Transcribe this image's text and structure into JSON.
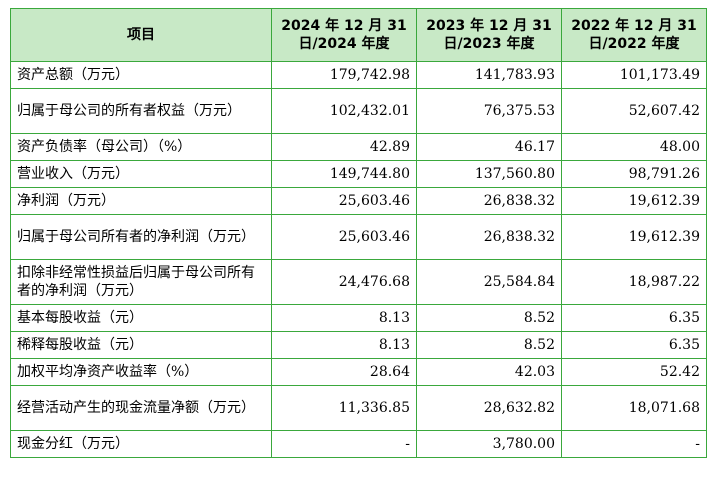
{
  "table": {
    "headers": {
      "item": "项目",
      "y2024": "2024 年 12 月 31 日/2024 年度",
      "y2023": "2023 年 12 月 31 日/2023 年度",
      "y2022": "2022 年 12 月 31 日/2022 年度"
    },
    "rows": [
      {
        "label": "资产总额（万元）",
        "v2024": "179,742.98",
        "v2023": "141,783.93",
        "v2022": "101,173.49"
      },
      {
        "label": "归属于母公司的所有者权益（万元）",
        "v2024": "102,432.01",
        "v2023": "76,375.53",
        "v2022": "52,607.42"
      },
      {
        "label": "资产负债率（母公司）（%）",
        "v2024": "42.89",
        "v2023": "46.17",
        "v2022": "48.00"
      },
      {
        "label": "营业收入（万元）",
        "v2024": "149,744.80",
        "v2023": "137,560.80",
        "v2022": "98,791.26"
      },
      {
        "label": "净利润（万元）",
        "v2024": "25,603.46",
        "v2023": "26,838.32",
        "v2022": "19,612.39"
      },
      {
        "label": "归属于母公司所有者的净利润（万元）",
        "v2024": "25,603.46",
        "v2023": "26,838.32",
        "v2022": "19,612.39"
      },
      {
        "label": "扣除非经常性损益后归属于母公司所有者的净利润（万元）",
        "v2024": "24,476.68",
        "v2023": "25,584.84",
        "v2022": "18,987.22"
      },
      {
        "label": "基本每股收益（元）",
        "v2024": "8.13",
        "v2023": "8.52",
        "v2022": "6.35"
      },
      {
        "label": "稀释每股收益（元）",
        "v2024": "8.13",
        "v2023": "8.52",
        "v2022": "6.35"
      },
      {
        "label": "加权平均净资产收益率（%）",
        "v2024": "28.64",
        "v2023": "42.03",
        "v2022": "52.42"
      },
      {
        "label": "经营活动产生的现金流量净额（万元）",
        "v2024": "11,336.85",
        "v2023": "28,632.82",
        "v2022": "18,071.68"
      },
      {
        "label": "现金分红（万元）",
        "v2024": "-",
        "v2023": "3,780.00",
        "v2022": "-"
      }
    ]
  },
  "colors": {
    "border": "#3aa83c",
    "header_background": "#c8e9c6"
  }
}
